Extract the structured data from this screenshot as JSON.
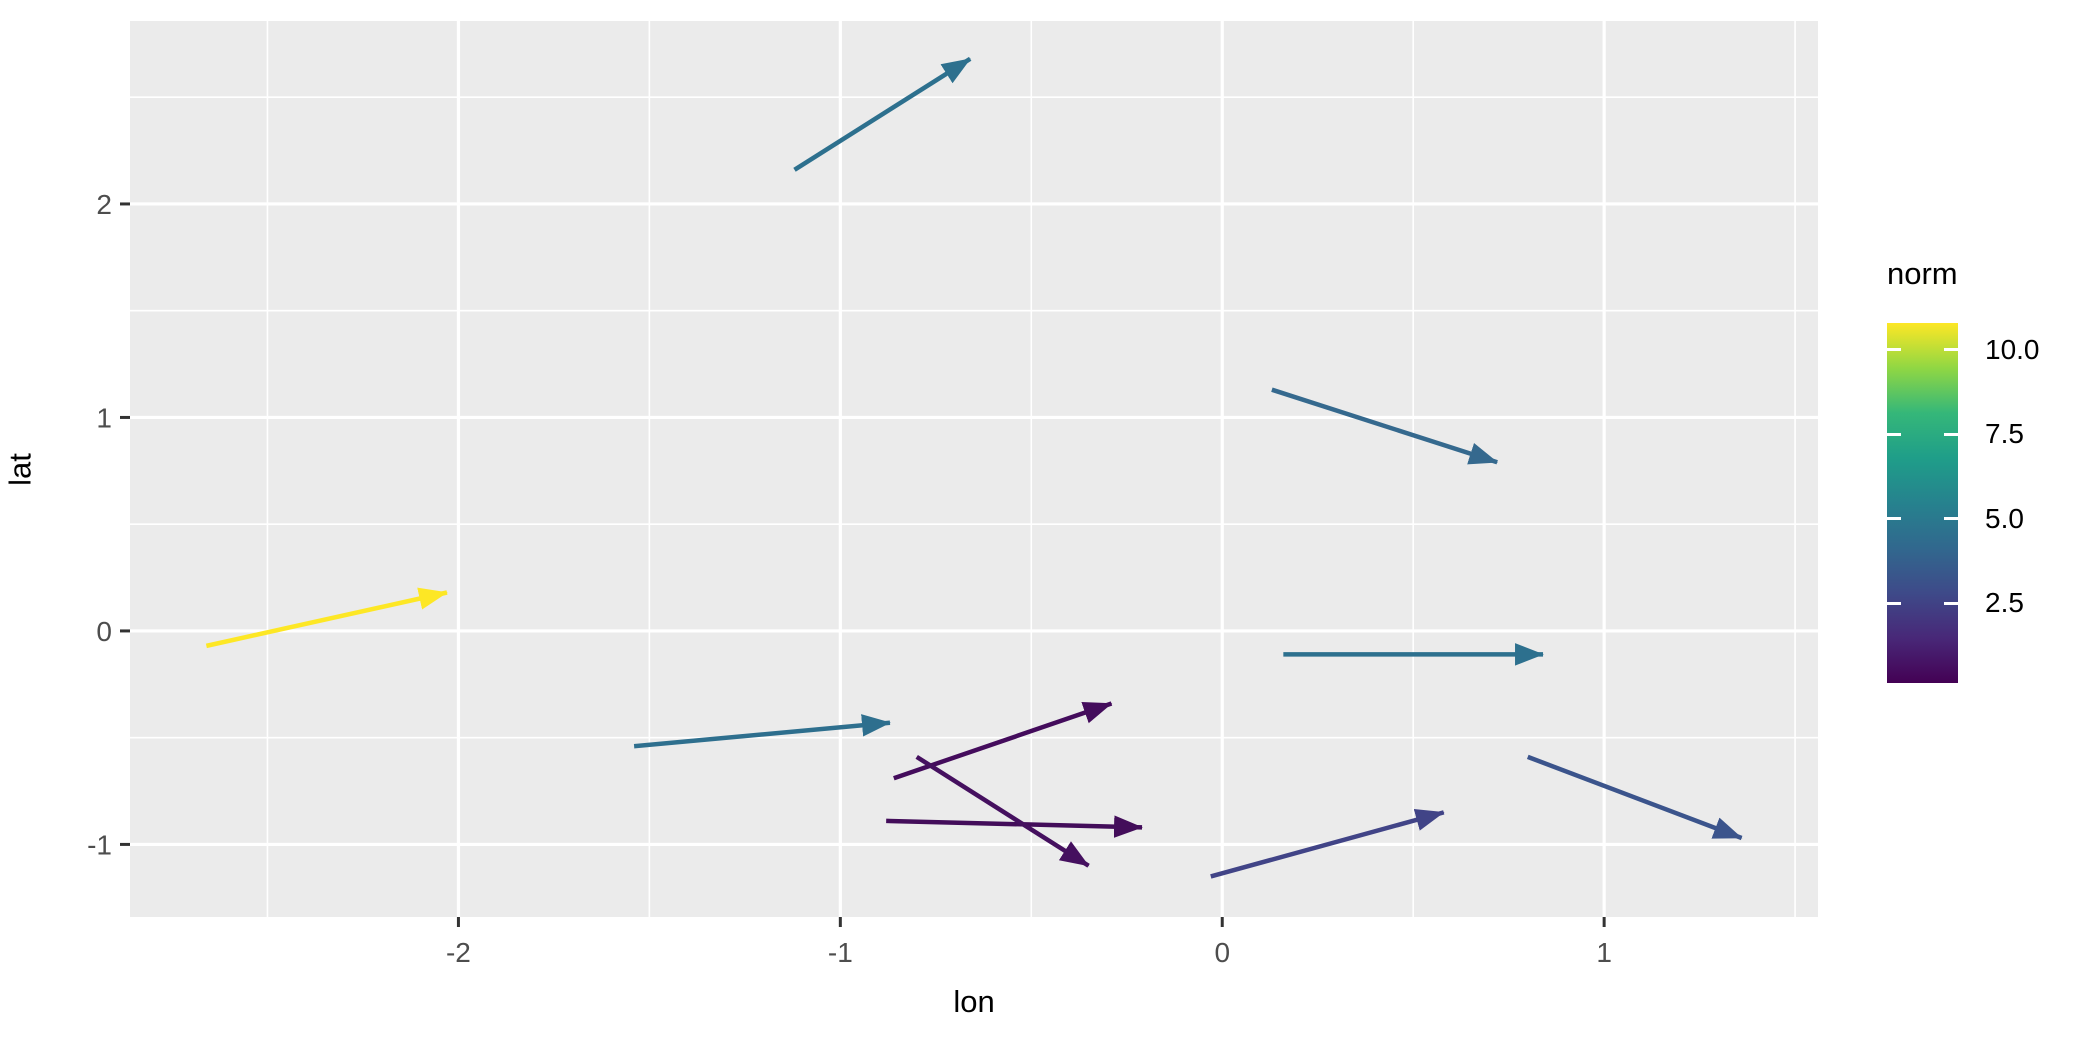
{
  "figure": {
    "background_color": "#ffffff",
    "panel_background_color": "#ebebeb",
    "gridline_color": "#ffffff",
    "tick_color": "#333333",
    "tick_label_color": "#4d4d4d",
    "axis_title_color": "#000000"
  },
  "chart_data": {
    "type": "scatter",
    "subtype": "segment-vector-field",
    "title": "",
    "xlabel": "lon",
    "ylabel": "lat",
    "xlim": [
      -2.86,
      1.56
    ],
    "ylim": [
      -1.34,
      2.857
    ],
    "grid": "on",
    "x_ticks": [
      -2,
      -1,
      0,
      1
    ],
    "x_tick_labels": [
      "-2",
      "-1",
      "0",
      "1"
    ],
    "x_minor_ticks": [
      -2.5,
      -1.5,
      -0.5,
      0.5,
      1.5
    ],
    "y_ticks": [
      2,
      1,
      0,
      -1
    ],
    "y_tick_labels": [
      "2",
      "1",
      "0",
      "-1"
    ],
    "y_minor_ticks": [
      2.5,
      1.5,
      0.5,
      -0.5
    ],
    "segments": [
      {
        "x": -2.66,
        "y": -0.07,
        "xend": -2.03,
        "yend": 0.18,
        "norm": 10.8,
        "color": "#fde725"
      },
      {
        "x": -1.12,
        "y": 2.16,
        "xend": -0.66,
        "yend": 2.68,
        "norm": 4.8,
        "color": "#2d708e"
      },
      {
        "x": 0.13,
        "y": 1.13,
        "xend": 0.72,
        "yend": 0.79,
        "norm": 4.4,
        "color": "#35698e"
      },
      {
        "x": 0.16,
        "y": -0.11,
        "xend": 0.84,
        "yend": -0.11,
        "norm": 4.8,
        "color": "#2d708e"
      },
      {
        "x": -1.54,
        "y": -0.54,
        "xend": -0.87,
        "yend": -0.43,
        "norm": 4.7,
        "color": "#2e6f8e"
      },
      {
        "x": -0.86,
        "y": -0.69,
        "xend": -0.29,
        "yend": -0.34,
        "norm": 0.7,
        "color": "#440c5c"
      },
      {
        "x": -0.88,
        "y": -0.89,
        "xend": -0.21,
        "yend": -0.92,
        "norm": 0.6,
        "color": "#430d5a"
      },
      {
        "x": -0.8,
        "y": -0.59,
        "xend": -0.35,
        "yend": -1.1,
        "norm": 0.5,
        "color": "#45105f"
      },
      {
        "x": -0.03,
        "y": -1.15,
        "xend": 0.58,
        "yend": -0.85,
        "norm": 2.3,
        "color": "#414487"
      },
      {
        "x": 0.8,
        "y": -0.59,
        "xend": 1.36,
        "yend": -0.97,
        "norm": 2.9,
        "color": "#3b548c"
      }
    ],
    "legend": {
      "title": "norm",
      "position": "right",
      "ticks": [
        10.0,
        7.5,
        5.0,
        2.5
      ],
      "tick_labels": [
        "10.0",
        "7.5",
        "5.0",
        "2.5"
      ],
      "limits": [
        0.13,
        10.8
      ],
      "palette": "viridis",
      "palette_stops_bottom_to_top": [
        "#440154",
        "#482878",
        "#3e4a89",
        "#31688e",
        "#26828e",
        "#1f9e89",
        "#35b779",
        "#90d743",
        "#fde725"
      ]
    }
  }
}
